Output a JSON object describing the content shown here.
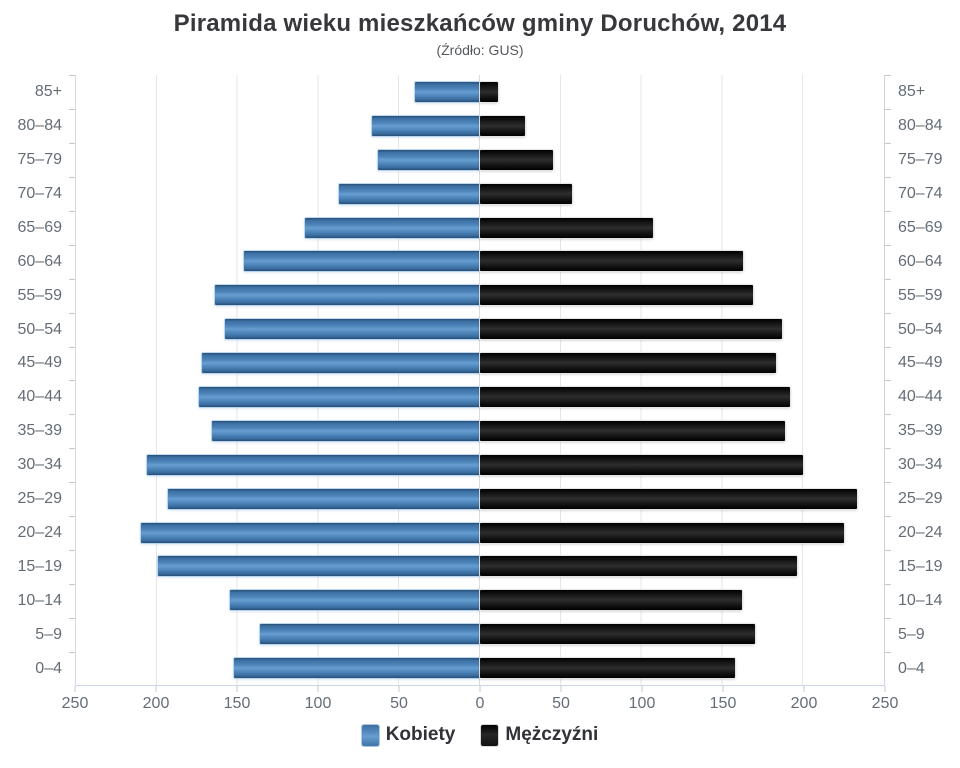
{
  "header": {
    "title": "Piramida wieku mieszkańców gminy Doruchów, 2014",
    "subtitle": "(Źródło: GUS)"
  },
  "legend": [
    {
      "id": "kobiety",
      "label": "Kobiety",
      "color": "#4f86bc"
    },
    {
      "id": "mezczyzni",
      "label": "Mężczyźni",
      "color": "#111111"
    }
  ],
  "chart_data": {
    "type": "bar",
    "variant": "population-pyramid",
    "title": "Piramida wieku mieszkańców gminy Doruchów, 2014",
    "subtitle": "(Źródło: GUS)",
    "grid": true,
    "legend_position": "bottom",
    "x_max_per_side": 250,
    "x_tick_step": 50,
    "x_ticks": [
      "250",
      "200",
      "150",
      "100",
      "50",
      "0",
      "50",
      "100",
      "150",
      "200",
      "250"
    ],
    "categories_top_to_bottom": [
      "85+",
      "80–84",
      "75–79",
      "70–74",
      "65–69",
      "60–64",
      "55–59",
      "50–54",
      "45–49",
      "40–44",
      "35–39",
      "30–34",
      "25–29",
      "20–24",
      "15–19",
      "10–14",
      "5–9",
      "0–4"
    ],
    "series": [
      {
        "name": "Kobiety",
        "side": "left",
        "color": "#4f86bc",
        "values": [
          40,
          67,
          63,
          87,
          108,
          146,
          164,
          158,
          172,
          174,
          166,
          206,
          193,
          210,
          199,
          155,
          136,
          152
        ]
      },
      {
        "name": "Mężczyźni",
        "side": "right",
        "color": "#111111",
        "values": [
          11,
          28,
          45,
          57,
          107,
          163,
          169,
          187,
          183,
          192,
          189,
          200,
          233,
          225,
          196,
          162,
          170,
          158
        ]
      }
    ]
  }
}
